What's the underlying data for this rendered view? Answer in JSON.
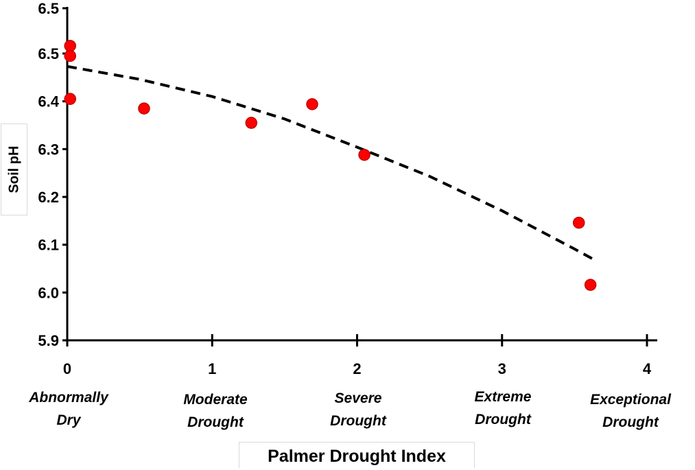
{
  "chart_data": {
    "type": "scatter",
    "title": "",
    "xlabel": "Palmer Drought Index",
    "ylabel": "Soil pH",
    "xlim": [
      0,
      4
    ],
    "ylim": [
      5.9,
      6.5
    ],
    "x_ticks": [
      "0",
      "1",
      "2",
      "3",
      "4"
    ],
    "y_ticks": [
      "5.9",
      "6.0",
      "6.1",
      "6.2",
      "6.3",
      "6.4",
      "6.5",
      "6.5"
    ],
    "category_labels": [
      "Abnormally\nDry",
      "Moderate\nDrought",
      "Severe\nDrought",
      "Extreme\nDrought",
      "Exceptional\nDrought"
    ],
    "points": [
      {
        "x": 0.02,
        "y": 6.516
      },
      {
        "x": 0.02,
        "y": 6.495
      },
      {
        "x": 0.02,
        "y": 6.405
      },
      {
        "x": 0.53,
        "y": 6.385
      },
      {
        "x": 1.27,
        "y": 6.355
      },
      {
        "x": 1.69,
        "y": 6.394
      },
      {
        "x": 2.05,
        "y": 6.288
      },
      {
        "x": 3.53,
        "y": 6.146
      },
      {
        "x": 3.61,
        "y": 6.016
      }
    ],
    "trendline": {
      "style": "dashed",
      "color": "#000000",
      "x_range": [
        0,
        3.64
      ],
      "points": [
        {
          "x": 0.0,
          "y": 6.473
        },
        {
          "x": 0.5,
          "y": 6.446
        },
        {
          "x": 1.0,
          "y": 6.41
        },
        {
          "x": 1.5,
          "y": 6.363
        },
        {
          "x": 2.0,
          "y": 6.304
        },
        {
          "x": 2.5,
          "y": 6.243
        },
        {
          "x": 3.0,
          "y": 6.171
        },
        {
          "x": 3.5,
          "y": 6.091
        },
        {
          "x": 3.64,
          "y": 6.068
        }
      ]
    },
    "marker_color": "#ff0000",
    "marker_edge": "#c00000",
    "grid": false
  }
}
